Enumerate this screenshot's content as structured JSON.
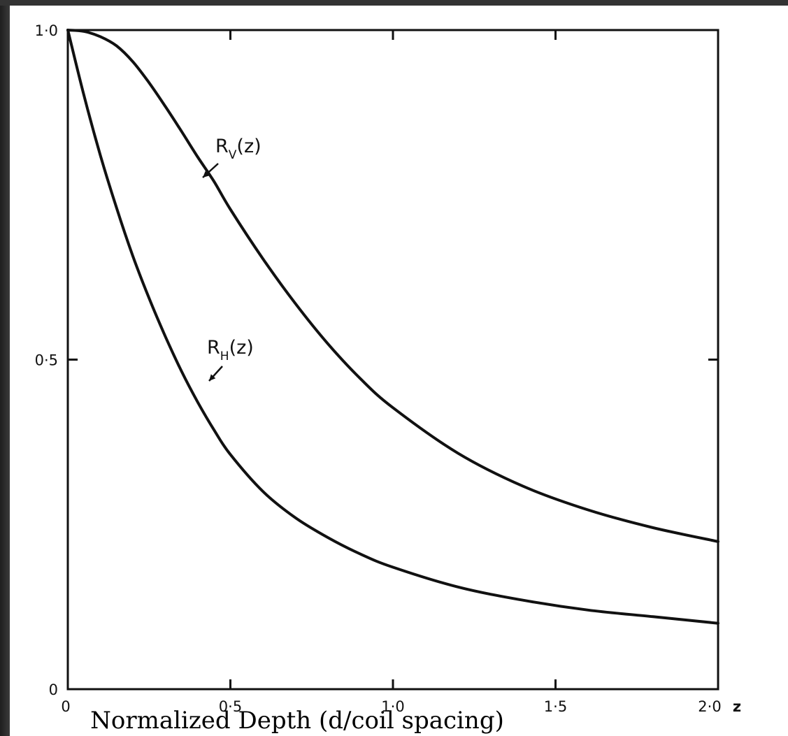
{
  "chart_data": {
    "type": "line",
    "xlabel": "Normalized Depth (d/coil spacing)",
    "x_axis_symbol": "z",
    "xlim": [
      0,
      2.0
    ],
    "ylim": [
      0,
      1.0
    ],
    "x_ticks": [
      0,
      0.5,
      1.0,
      1.5,
      2.0
    ],
    "x_tick_labels": [
      "0",
      "0·5",
      "1·0",
      "1·5",
      "2·0"
    ],
    "y_ticks": [
      0,
      0.5,
      1.0
    ],
    "y_tick_labels": [
      "0",
      "0·5",
      "1·0"
    ],
    "grid": false,
    "series": [
      {
        "name": "R_V(z)",
        "label_main": "R",
        "label_sub": "V",
        "label_tail": "(z)",
        "x": [
          0,
          0.05,
          0.1,
          0.15,
          0.2,
          0.25,
          0.3,
          0.35,
          0.4,
          0.45,
          0.5,
          0.6,
          0.7,
          0.8,
          0.9,
          1.0,
          1.2,
          1.4,
          1.6,
          1.8,
          2.0
        ],
        "values": [
          1.0,
          0.998,
          0.99,
          0.976,
          0.952,
          0.92,
          0.884,
          0.846,
          0.807,
          0.77,
          0.728,
          0.653,
          0.585,
          0.524,
          0.471,
          0.427,
          0.358,
          0.308,
          0.272,
          0.245,
          0.224
        ]
      },
      {
        "name": "R_H(z)",
        "label_main": "R",
        "label_sub": "H",
        "label_tail": "(z)",
        "x": [
          0,
          0.05,
          0.1,
          0.15,
          0.2,
          0.25,
          0.3,
          0.35,
          0.4,
          0.45,
          0.5,
          0.6,
          0.7,
          0.8,
          0.9,
          1.0,
          1.2,
          1.4,
          1.6,
          1.8,
          2.0
        ],
        "values": [
          1.0,
          0.9,
          0.81,
          0.73,
          0.657,
          0.593,
          0.535,
          0.482,
          0.435,
          0.393,
          0.356,
          0.3,
          0.26,
          0.23,
          0.205,
          0.185,
          0.155,
          0.135,
          0.12,
          0.11,
          0.1
        ]
      }
    ]
  }
}
